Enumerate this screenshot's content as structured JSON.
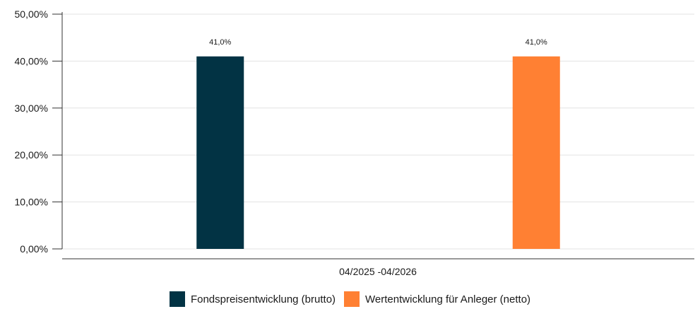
{
  "chart_data": {
    "type": "bar",
    "categories": [
      "04/2025 -04/2026"
    ],
    "series": [
      {
        "name": "Fondspreisentwicklung (brutto)",
        "values": [
          41.0
        ],
        "data_label": "41,0%",
        "color": "#023344"
      },
      {
        "name": "Wertentwicklung für Anleger (netto)",
        "values": [
          41.0
        ],
        "data_label": "41,0%",
        "color": "#FF8033"
      }
    ],
    "ylim": [
      0,
      50
    ],
    "yticks": [
      0,
      10,
      20,
      30,
      40,
      50
    ],
    "ytick_labels": [
      "0,00%",
      "10,00%",
      "20,00%",
      "30,00%",
      "40,00%",
      "50,00%"
    ],
    "grid": true,
    "legend_position": "bottom"
  }
}
